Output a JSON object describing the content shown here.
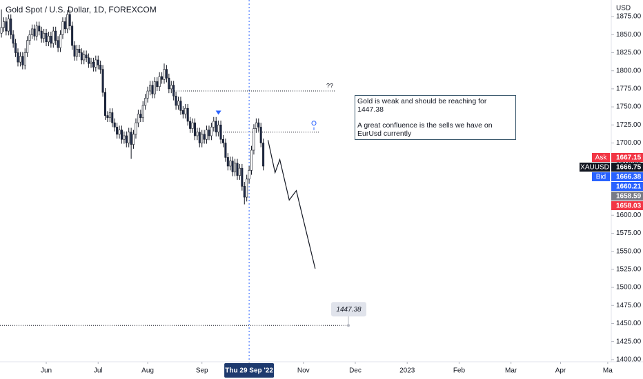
{
  "chart_data": {
    "type": "candlestick",
    "title": "Gold Spot / U.S. Dollar, 1D, FOREXCOM",
    "currency": "USD",
    "up_color": "#ffffff",
    "down_color": "#1e2a48",
    "border_color": "#131722",
    "x": [
      0,
      1,
      2,
      3,
      4,
      5,
      6,
      7,
      8,
      9,
      10,
      11,
      12,
      13,
      14,
      15,
      16,
      17,
      18,
      19,
      20,
      21,
      22,
      23,
      24,
      25,
      26,
      27,
      28,
      29,
      30,
      31,
      32,
      33,
      34,
      35,
      36,
      37,
      38,
      39,
      40,
      41,
      42,
      43,
      44,
      45,
      46,
      47,
      48,
      49,
      50,
      51,
      52,
      53,
      54,
      55,
      56,
      57,
      58,
      59,
      60,
      61,
      62,
      63,
      64,
      65,
      66,
      67,
      68,
      69,
      70,
      71,
      72,
      73,
      74,
      75,
      76,
      77,
      78,
      79,
      80,
      81,
      82,
      83,
      84,
      85,
      86,
      87,
      88,
      89,
      90,
      91,
      92,
      93,
      94,
      95,
      96,
      97,
      98,
      99,
      100,
      101,
      102,
      103,
      104,
      105,
      106,
      107,
      108,
      109,
      110,
      111
    ],
    "open": [
      1852,
      1860,
      1868,
      1855,
      1872,
      1850,
      1838,
      1825,
      1812,
      1820,
      1808,
      1825,
      1842,
      1850,
      1858,
      1848,
      1862,
      1855,
      1845,
      1852,
      1840,
      1848,
      1838,
      1855,
      1842,
      1832,
      1850,
      1868,
      1858,
      1878,
      1862,
      1835,
      1820,
      1830,
      1825,
      1815,
      1822,
      1818,
      1810,
      1812,
      1805,
      1815,
      1808,
      1802,
      1770,
      1738,
      1735,
      1742,
      1728,
      1722,
      1712,
      1718,
      1705,
      1710,
      1700,
      1715,
      1698,
      1712,
      1728,
      1740,
      1735,
      1752,
      1762,
      1772,
      1780,
      1768,
      1785,
      1778,
      1792,
      1788,
      1802,
      1790,
      1775,
      1780,
      1765,
      1752,
      1758,
      1745,
      1740,
      1748,
      1730,
      1720,
      1728,
      1710,
      1715,
      1700,
      1712,
      1705,
      1718,
      1710,
      1722,
      1730,
      1715,
      1725,
      1705,
      1700,
      1680,
      1668,
      1675,
      1660,
      1672,
      1655,
      1665,
      1640,
      1625,
      1650,
      1662,
      1690,
      1720,
      1728,
      1722,
      1700
    ],
    "high": [
      1885,
      1874,
      1874,
      1878,
      1878,
      1856,
      1844,
      1831,
      1826,
      1826,
      1831,
      1848,
      1856,
      1864,
      1864,
      1868,
      1868,
      1861,
      1858,
      1858,
      1854,
      1854,
      1861,
      1861,
      1848,
      1856,
      1874,
      1874,
      1884,
      1884,
      1868,
      1841,
      1836,
      1836,
      1831,
      1828,
      1828,
      1824,
      1818,
      1818,
      1821,
      1821,
      1814,
      1808,
      1776,
      1744,
      1748,
      1748,
      1734,
      1728,
      1724,
      1724,
      1716,
      1716,
      1721,
      1721,
      1718,
      1734,
      1746,
      1746,
      1758,
      1768,
      1778,
      1786,
      1786,
      1791,
      1791,
      1798,
      1798,
      1810,
      1808,
      1796,
      1786,
      1786,
      1771,
      1764,
      1764,
      1751,
      1754,
      1754,
      1736,
      1734,
      1734,
      1721,
      1721,
      1718,
      1718,
      1724,
      1724,
      1728,
      1736,
      1736,
      1731,
      1731,
      1711,
      1706,
      1686,
      1681,
      1681,
      1678,
      1678,
      1671,
      1671,
      1646,
      1656,
      1668,
      1696,
      1726,
      1734,
      1734,
      1728,
      1706
    ],
    "low": [
      1846,
      1854,
      1849,
      1849,
      1844,
      1832,
      1819,
      1806,
      1806,
      1802,
      1802,
      1819,
      1836,
      1844,
      1842,
      1842,
      1849,
      1839,
      1839,
      1834,
      1834,
      1832,
      1832,
      1836,
      1826,
      1826,
      1844,
      1852,
      1852,
      1856,
      1829,
      1814,
      1814,
      1819,
      1809,
      1809,
      1812,
      1804,
      1804,
      1799,
      1799,
      1802,
      1796,
      1764,
      1732,
      1729,
      1729,
      1722,
      1716,
      1706,
      1706,
      1699,
      1699,
      1694,
      1694,
      1678,
      1692,
      1706,
      1722,
      1729,
      1729,
      1746,
      1756,
      1766,
      1762,
      1762,
      1772,
      1772,
      1782,
      1782,
      1784,
      1769,
      1769,
      1759,
      1746,
      1746,
      1739,
      1734,
      1734,
      1724,
      1714,
      1714,
      1704,
      1704,
      1694,
      1694,
      1699,
      1699,
      1704,
      1704,
      1716,
      1709,
      1709,
      1699,
      1694,
      1674,
      1662,
      1662,
      1654,
      1654,
      1649,
      1649,
      1634,
      1615,
      1619,
      1644,
      1656,
      1684,
      1714,
      1716,
      1694,
      1662
    ],
    "close": [
      1860,
      1868,
      1855,
      1872,
      1850,
      1838,
      1825,
      1812,
      1820,
      1808,
      1825,
      1842,
      1850,
      1858,
      1848,
      1862,
      1855,
      1845,
      1852,
      1840,
      1848,
      1838,
      1855,
      1842,
      1832,
      1850,
      1868,
      1858,
      1878,
      1862,
      1835,
      1820,
      1830,
      1825,
      1815,
      1822,
      1818,
      1810,
      1812,
      1805,
      1815,
      1808,
      1802,
      1770,
      1738,
      1735,
      1742,
      1728,
      1722,
      1712,
      1718,
      1705,
      1710,
      1700,
      1715,
      1698,
      1712,
      1728,
      1740,
      1735,
      1752,
      1762,
      1772,
      1780,
      1768,
      1785,
      1778,
      1792,
      1788,
      1802,
      1790,
      1775,
      1780,
      1765,
      1752,
      1758,
      1745,
      1740,
      1748,
      1730,
      1720,
      1728,
      1710,
      1715,
      1700,
      1712,
      1705,
      1718,
      1710,
      1722,
      1730,
      1715,
      1725,
      1705,
      1700,
      1680,
      1668,
      1675,
      1660,
      1672,
      1655,
      1665,
      1640,
      1625,
      1650,
      1662,
      1690,
      1720,
      1728,
      1722,
      1700,
      1668
    ],
    "xlim": [
      -0.6,
      258.5
    ],
    "xticks": [
      {
        "value": 19,
        "label": "Jun"
      },
      {
        "value": 41,
        "label": "Jul"
      },
      {
        "value": 62,
        "label": "Aug"
      },
      {
        "value": 85,
        "label": "Sep"
      },
      {
        "value": 105,
        "label": "Thu 29 Sep '22"
      },
      {
        "value": 128,
        "label": "Nov"
      },
      {
        "value": 150,
        "label": "Dec"
      },
      {
        "value": 172,
        "label": "2023"
      },
      {
        "value": 194,
        "label": "Feb"
      },
      {
        "value": 216,
        "label": "Mar"
      },
      {
        "value": 237,
        "label": "Apr"
      },
      {
        "value": 257,
        "label": "Ma"
      }
    ],
    "crosshair": 105,
    "ylim": [
      1397,
      1898
    ],
    "yticks": [
      {
        "value": 1400,
        "label": "1400.00"
      },
      {
        "value": 1425,
        "label": "1425.00"
      },
      {
        "value": 1450,
        "label": "1450.00"
      },
      {
        "value": 1475,
        "label": "1475.00"
      },
      {
        "value": 1500,
        "label": "1500.00"
      },
      {
        "value": 1525,
        "label": "1525.00"
      },
      {
        "value": 1550,
        "label": "1550.00"
      },
      {
        "value": 1575,
        "label": "1575.00"
      },
      {
        "value": 1600,
        "label": "1600.00"
      },
      {
        "value": 1625,
        "label": "1625.00"
      },
      {
        "value": 1650,
        "label": "1650.00"
      },
      {
        "value": 1675,
        "label": "1675.00"
      },
      {
        "value": 1700,
        "label": "1700.00"
      },
      {
        "value": 1725,
        "label": "1725.00"
      },
      {
        "value": 1750,
        "label": "1750.00"
      },
      {
        "value": 1775,
        "label": "1775.00"
      },
      {
        "value": 1800,
        "label": "1800.00"
      },
      {
        "value": 1825,
        "label": "1825.00"
      },
      {
        "value": 1850,
        "label": "1850.00"
      },
      {
        "value": 1875,
        "label": "1875.00"
      }
    ],
    "price_tags": [
      {
        "label": "Ask",
        "value": 1667.15,
        "color": "#f23645"
      },
      {
        "label": "XAUUSD",
        "value": 1666.75,
        "color": "#131722"
      },
      {
        "label": "Bid",
        "value": 1666.38,
        "color": "#2962ff"
      },
      {
        "value": 1660.21,
        "color": "#2962ff"
      },
      {
        "value": 1658.59,
        "color": "#787b86"
      },
      {
        "value": 1658.03,
        "color": "#f23645"
      }
    ],
    "projection": {
      "x": [
        113,
        116,
        118,
        122,
        125,
        133
      ],
      "values": [
        1704,
        1659,
        1677,
        1621,
        1634,
        1526
      ],
      "color": "#131722"
    },
    "levels": [
      {
        "value": 1772,
        "label": "??"
      },
      {
        "value": 1715
      }
    ],
    "marker": {
      "x": 92,
      "value": 1742,
      "color": "#2962ff"
    },
    "target": {
      "value": 1447.38,
      "label": "1447.38"
    },
    "text_box": [
      "Gold is weak and should be reaching for 1447.38",
      "A great confluence is the sells we have on EurUsd currently"
    ]
  }
}
